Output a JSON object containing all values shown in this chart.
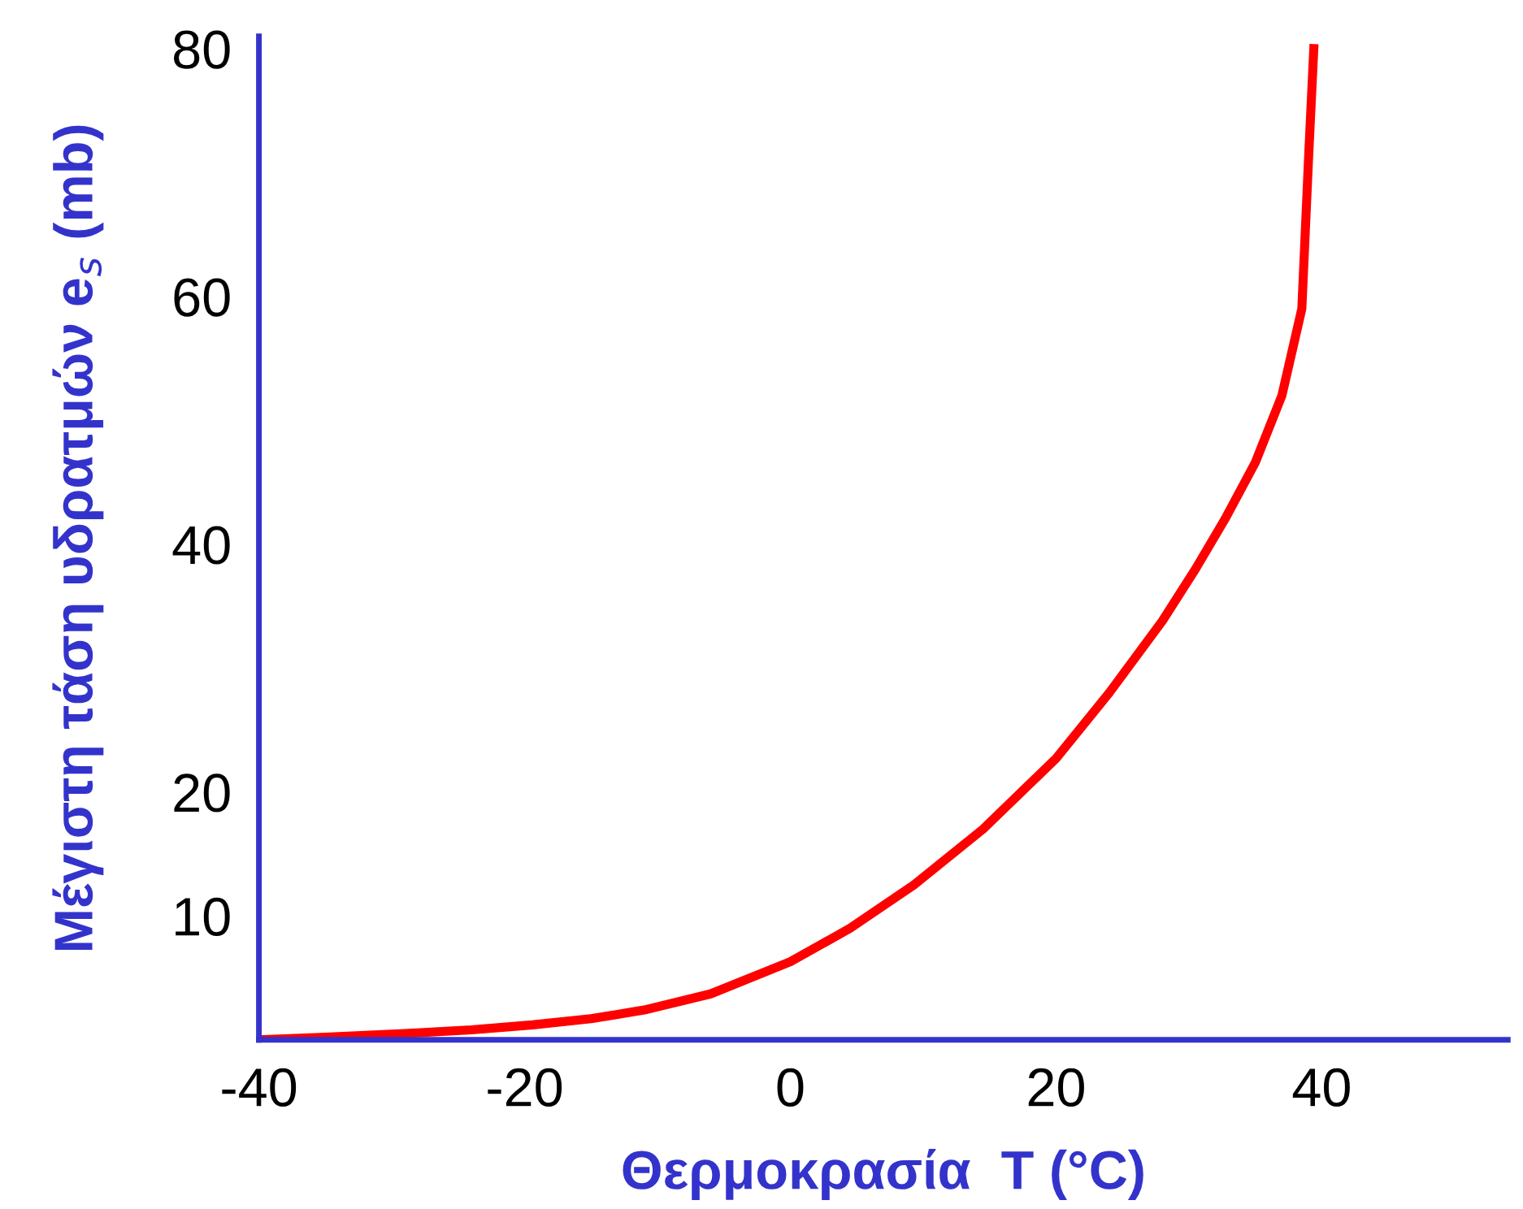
{
  "chart_data": {
    "type": "line",
    "xlabel": "Θερμοκρασία  T (°C)",
    "ylabel": "Μέγιστη τάση υδρατμών e$_{s}$ (mb)",
    "x": [
      -40,
      -35,
      -29,
      -24,
      -19.4,
      -15,
      -11,
      -6,
      0,
      4.5,
      9.3,
      14.5,
      20,
      24,
      28,
      30.5,
      32.7,
      35,
      37,
      38.5,
      39,
      39.4
    ],
    "series": [
      {
        "color": "#ff0000",
        "values": [
          0,
          0.2,
          0.5,
          0.8,
          1.2,
          1.7,
          2.4,
          3.7,
          6.3,
          9,
          12.5,
          17,
          22.7,
          28,
          33.8,
          38,
          42,
          46.6,
          52,
          59,
          71,
          80
        ]
      }
    ],
    "xlim": [
      -40,
      54
    ],
    "ylim": [
      0,
      81
    ],
    "xticks": [
      -40,
      -20,
      0,
      20,
      40
    ],
    "yticks": [
      10,
      20,
      40,
      60,
      80
    ],
    "grid": false,
    "marker": "none",
    "line_style": "solid"
  }
}
